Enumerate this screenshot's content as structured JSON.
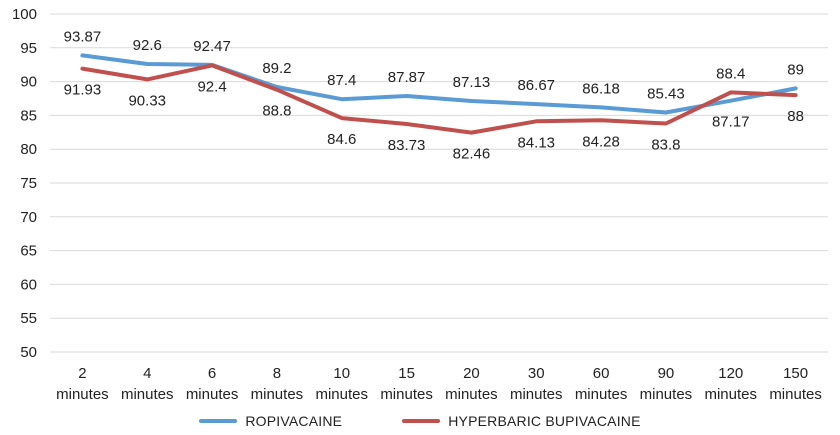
{
  "chart_data": {
    "type": "line",
    "title": "",
    "xlabel": "",
    "ylabel": "",
    "ylim": [
      50,
      100
    ],
    "yticks": [
      "50",
      "55",
      "60",
      "65",
      "70",
      "75",
      "80",
      "85",
      "90",
      "95",
      "100"
    ],
    "grid": true,
    "legend_position": "bottom",
    "categories": [
      "2 minutes",
      "4 minutes",
      "6 minutes",
      "8 minutes",
      "10 minutes",
      "15 minutes",
      "20 minutes",
      "30 minutes",
      "60 minutes",
      "90 minutes",
      "120 minutes",
      "150 minutes"
    ],
    "category_lines": [
      [
        "2",
        "minutes"
      ],
      [
        "4",
        "minutes"
      ],
      [
        "6",
        "minutes"
      ],
      [
        "8",
        "minutes"
      ],
      [
        "10",
        "minutes"
      ],
      [
        "15",
        "minutes"
      ],
      [
        "20",
        "minutes"
      ],
      [
        "30",
        "minutes"
      ],
      [
        "60",
        "minutes"
      ],
      [
        "90",
        "minutes"
      ],
      [
        "120",
        "minutes"
      ],
      [
        "150",
        "minutes"
      ]
    ],
    "series": [
      {
        "name": "ROPIVACAINE",
        "color": "#5b9bd5",
        "values": [
          93.87,
          92.6,
          92.47,
          89.2,
          87.4,
          87.87,
          87.13,
          86.67,
          86.18,
          85.43,
          87.17,
          89
        ],
        "labels": [
          "93.87",
          "92.6",
          "92.47",
          "89.2",
          "87.4",
          "87.87",
          "87.13",
          "86.67",
          "86.18",
          "85.43",
          "87.17",
          "89"
        ]
      },
      {
        "name": "HYPERBARIC BUPIVACAINE",
        "color": "#c0504d",
        "values": [
          91.93,
          90.33,
          92.4,
          88.8,
          84.6,
          83.73,
          82.46,
          84.13,
          84.28,
          83.8,
          88.4,
          88
        ],
        "labels": [
          "91.93",
          "90.33",
          "92.4",
          "88.8",
          "84.6",
          "83.73",
          "82.46",
          "84.13",
          "84.28",
          "83.8",
          "88.4",
          "88"
        ]
      }
    ]
  }
}
